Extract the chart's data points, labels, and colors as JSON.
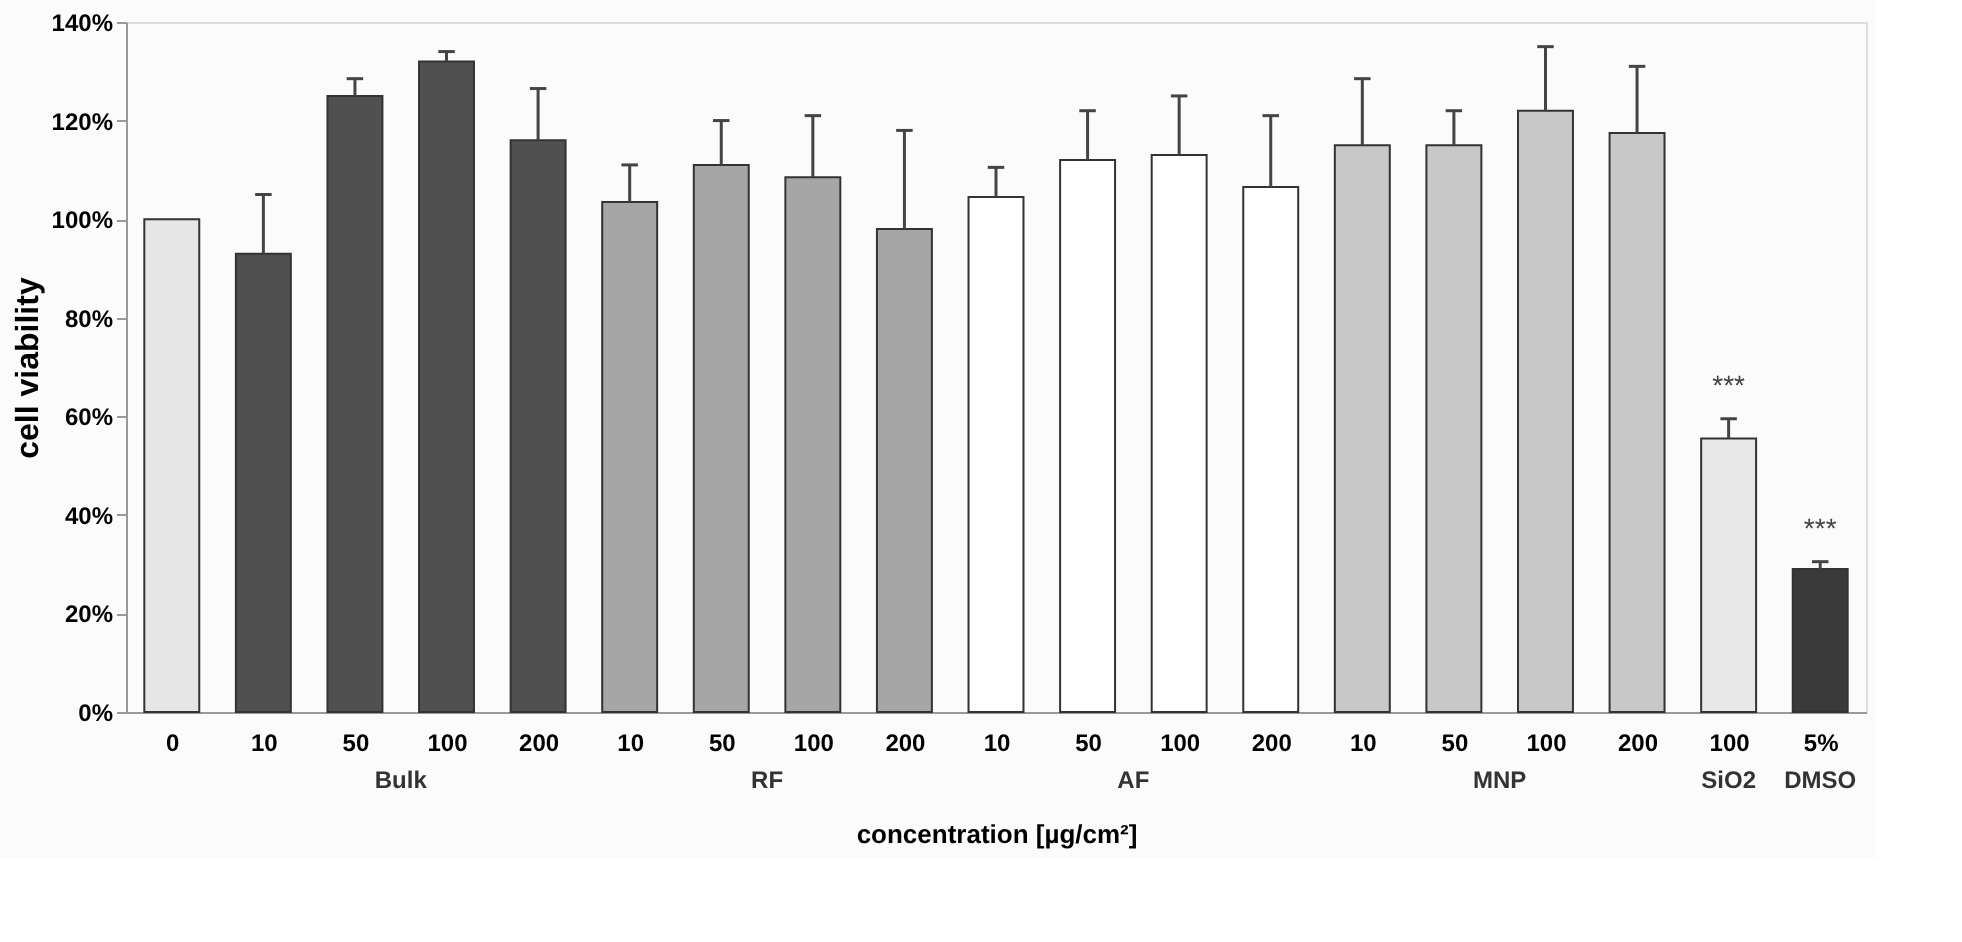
{
  "chart_data": {
    "type": "bar",
    "xlabel": "concentration [µg/cm²]",
    "ylabel": "cell viability",
    "categories": [
      "0",
      "10",
      "50",
      "100",
      "200",
      "10",
      "50",
      "100",
      "200",
      "10",
      "50",
      "100",
      "200",
      "10",
      "50",
      "100",
      "200",
      "100",
      "5%"
    ],
    "series": [
      {
        "color": "#e6e6e6",
        "values": [
          100,
          null,
          null,
          null,
          null,
          null,
          null,
          null,
          null,
          null,
          null,
          null,
          null,
          null,
          null,
          null,
          null,
          null,
          null
        ]
      },
      {
        "name": "Bulk",
        "color": "#505050",
        "values": [
          null,
          93,
          125,
          132,
          116,
          null,
          null,
          null,
          null,
          null,
          null,
          null,
          null,
          null,
          null,
          null,
          null,
          null,
          null
        ],
        "errors": [
          null,
          [
            93,
            105
          ],
          [
            125,
            128.5
          ],
          [
            132,
            134
          ],
          [
            116,
            126.5
          ],
          null,
          null,
          null,
          null,
          null,
          null,
          null,
          null,
          null,
          null,
          null,
          null,
          null,
          null
        ]
      },
      {
        "name": "RF",
        "color": "#a6a6a6",
        "values": [
          null,
          null,
          null,
          null,
          null,
          103.5,
          111,
          108.5,
          98,
          null,
          null,
          null,
          null,
          null,
          null,
          null,
          null,
          null,
          null
        ],
        "errors": [
          null,
          null,
          null,
          null,
          null,
          [
            103.5,
            111
          ],
          [
            111,
            120
          ],
          [
            108.5,
            121
          ],
          [
            98,
            118
          ],
          null,
          null,
          null,
          null,
          null,
          null,
          null,
          null,
          null,
          null
        ]
      },
      {
        "name": "AF",
        "color": "#ffffff",
        "values": [
          null,
          null,
          null,
          null,
          null,
          null,
          null,
          null,
          null,
          104.5,
          112,
          113,
          106.5,
          null,
          null,
          null,
          null,
          null,
          null
        ],
        "errors": [
          null,
          null,
          null,
          null,
          null,
          null,
          null,
          null,
          null,
          [
            104.5,
            110.5
          ],
          [
            112,
            122
          ],
          [
            113,
            125
          ],
          [
            106.5,
            121
          ],
          null,
          null,
          null,
          null,
          null,
          null
        ]
      },
      {
        "name": "MNP",
        "color": "#c8c8c8",
        "values": [
          null,
          null,
          null,
          null,
          null,
          null,
          null,
          null,
          null,
          null,
          null,
          null,
          null,
          115,
          115,
          122,
          117.5,
          null,
          null
        ],
        "errors": [
          null,
          null,
          null,
          null,
          null,
          null,
          null,
          null,
          null,
          null,
          null,
          null,
          null,
          [
            115,
            128.5
          ],
          [
            115,
            122
          ],
          [
            122,
            135
          ],
          [
            117.5,
            131
          ],
          null,
          null
        ]
      },
      {
        "name": "SiO2",
        "color": "#e8e8e8",
        "values": [
          null,
          null,
          null,
          null,
          null,
          null,
          null,
          null,
          null,
          null,
          null,
          null,
          null,
          null,
          null,
          null,
          null,
          55.5,
          null
        ],
        "errors": [
          null,
          null,
          null,
          null,
          null,
          null,
          null,
          null,
          null,
          null,
          null,
          null,
          null,
          null,
          null,
          null,
          null,
          [
            55.5,
            59.5
          ],
          null
        ],
        "value_labels": [
          null,
          null,
          null,
          null,
          null,
          null,
          null,
          null,
          null,
          null,
          null,
          null,
          null,
          null,
          null,
          null,
          null,
          "***",
          null
        ]
      },
      {
        "name": "DMSO",
        "color": "#3a3a3a",
        "values": [
          null,
          null,
          null,
          null,
          null,
          null,
          null,
          null,
          null,
          null,
          null,
          null,
          null,
          null,
          null,
          null,
          null,
          null,
          29
        ],
        "errors": [
          null,
          null,
          null,
          null,
          null,
          null,
          null,
          null,
          null,
          null,
          null,
          null,
          null,
          null,
          null,
          null,
          null,
          null,
          [
            29,
            30.5
          ]
        ],
        "value_labels": [
          null,
          null,
          null,
          null,
          null,
          null,
          null,
          null,
          null,
          null,
          null,
          null,
          null,
          null,
          null,
          null,
          null,
          null,
          "***"
        ]
      }
    ],
    "ylim": [
      0,
      140
    ],
    "yticks": [
      {
        "value": 0,
        "label": "0%"
      },
      {
        "value": 20,
        "label": "20%"
      },
      {
        "value": 40,
        "label": "40%"
      },
      {
        "value": 60,
        "label": "60%"
      },
      {
        "value": 80,
        "label": "80%"
      },
      {
        "value": 100,
        "label": "100%"
      },
      {
        "value": 120,
        "label": "120%"
      },
      {
        "value": 140,
        "label": "140%"
      }
    ],
    "grid": false
  }
}
